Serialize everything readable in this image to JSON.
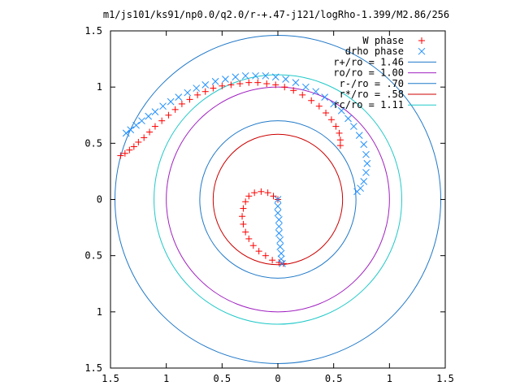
{
  "chart_data": {
    "type": "scatter",
    "title": "m1/js101/ks91/np0.0/q2.0/r-+.47-j121/logRho-1.399/M2.86/256",
    "xlabel": "",
    "ylabel": "",
    "xlim": [
      -1.5,
      1.5
    ],
    "ylim": [
      -1.5,
      1.5
    ],
    "x_ticks": [
      -1.5,
      -1,
      -0.5,
      0,
      0.5,
      1,
      1.5
    ],
    "y_ticks": [
      -1.5,
      -1,
      -0.5,
      0,
      0.5,
      1,
      1.5
    ],
    "x_tick_labels": [
      "1.5",
      "1",
      "0.5",
      "0",
      "0.5",
      "1",
      "1.5"
    ],
    "y_tick_labels": [
      "1.5",
      "1",
      "0.5",
      "0",
      "0.5",
      "1",
      "1.5"
    ],
    "grid": false,
    "legend_position": "top-right",
    "circles": [
      {
        "name": "r+/ro = 1.46",
        "radius": 1.46,
        "color": "#1f78c8"
      },
      {
        "name": "ro/ro = 1.00",
        "radius": 1.0,
        "color": "#a020c0"
      },
      {
        "name": "r-/ro = .70",
        "radius": 0.7,
        "color": "#1f78c8"
      },
      {
        "name": "r*/ro = .58",
        "radius": 0.58,
        "color": "#cc0000"
      },
      {
        "name": "rc/ro = 1.11",
        "radius": 1.11,
        "color": "#20c8c8"
      }
    ],
    "series": [
      {
        "name": "W phase",
        "marker": "plus",
        "color": "#ff0000",
        "points": [
          [
            -1.41,
            0.39
          ],
          [
            -1.37,
            0.41
          ],
          [
            -1.33,
            0.44
          ],
          [
            -1.29,
            0.47
          ],
          [
            -1.25,
            0.51
          ],
          [
            -1.2,
            0.55
          ],
          [
            -1.15,
            0.6
          ],
          [
            -1.1,
            0.65
          ],
          [
            -1.04,
            0.7
          ],
          [
            -0.98,
            0.75
          ],
          [
            -0.92,
            0.8
          ],
          [
            -0.86,
            0.85
          ],
          [
            -0.79,
            0.89
          ],
          [
            -0.72,
            0.93
          ],
          [
            -0.65,
            0.96
          ],
          [
            -0.58,
            0.99
          ],
          [
            -0.5,
            1.01
          ],
          [
            -0.42,
            1.02
          ],
          [
            -0.34,
            1.03
          ],
          [
            -0.26,
            1.04
          ],
          [
            -0.18,
            1.04
          ],
          [
            -0.1,
            1.03
          ],
          [
            -0.02,
            1.02
          ],
          [
            0.06,
            1.0
          ],
          [
            0.14,
            0.97
          ],
          [
            0.22,
            0.93
          ],
          [
            0.3,
            0.88
          ],
          [
            0.37,
            0.83
          ],
          [
            0.43,
            0.77
          ],
          [
            0.48,
            0.71
          ],
          [
            0.52,
            0.65
          ],
          [
            0.55,
            0.59
          ],
          [
            0.56,
            0.53
          ],
          [
            0.56,
            0.48
          ],
          [
            0.0,
            0.0
          ],
          [
            -0.04,
            0.03
          ],
          [
            -0.09,
            0.06
          ],
          [
            -0.15,
            0.07
          ],
          [
            -0.21,
            0.06
          ],
          [
            -0.26,
            0.03
          ],
          [
            -0.29,
            -0.02
          ],
          [
            -0.31,
            -0.08
          ],
          [
            -0.32,
            -0.15
          ],
          [
            -0.31,
            -0.22
          ],
          [
            -0.29,
            -0.29
          ],
          [
            -0.26,
            -0.35
          ],
          [
            -0.22,
            -0.41
          ],
          [
            -0.17,
            -0.46
          ],
          [
            -0.11,
            -0.5
          ],
          [
            -0.05,
            -0.54
          ],
          [
            0.01,
            -0.56
          ],
          [
            0.05,
            -0.57
          ]
        ]
      },
      {
        "name": "drho phase",
        "marker": "cross",
        "color": "#1f8fff",
        "points": [
          [
            -1.36,
            0.59
          ],
          [
            -1.32,
            0.62
          ],
          [
            -1.27,
            0.66
          ],
          [
            -1.22,
            0.7
          ],
          [
            -1.16,
            0.74
          ],
          [
            -1.1,
            0.78
          ],
          [
            -1.03,
            0.83
          ],
          [
            -0.96,
            0.87
          ],
          [
            -0.89,
            0.91
          ],
          [
            -0.81,
            0.95
          ],
          [
            -0.73,
            0.99
          ],
          [
            -0.65,
            1.02
          ],
          [
            -0.56,
            1.05
          ],
          [
            -0.47,
            1.07
          ],
          [
            -0.38,
            1.09
          ],
          [
            -0.29,
            1.1
          ],
          [
            -0.2,
            1.1
          ],
          [
            -0.11,
            1.1
          ],
          [
            -0.02,
            1.09
          ],
          [
            0.07,
            1.07
          ],
          [
            0.16,
            1.04
          ],
          [
            0.25,
            1.0
          ],
          [
            0.34,
            0.96
          ],
          [
            0.42,
            0.91
          ],
          [
            0.5,
            0.85
          ],
          [
            0.57,
            0.79
          ],
          [
            0.63,
            0.72
          ],
          [
            0.68,
            0.65
          ],
          [
            0.73,
            0.57
          ],
          [
            0.77,
            0.49
          ],
          [
            0.79,
            0.4
          ],
          [
            0.8,
            0.32
          ],
          [
            0.79,
            0.24
          ],
          [
            0.77,
            0.16
          ],
          [
            0.74,
            0.1
          ],
          [
            0.71,
            0.07
          ],
          [
            0.0,
            0.0
          ],
          [
            0.0,
            -0.06
          ],
          [
            0.0,
            -0.12
          ],
          [
            0.01,
            -0.18
          ],
          [
            0.01,
            -0.24
          ],
          [
            0.01,
            -0.3
          ],
          [
            0.02,
            -0.36
          ],
          [
            0.02,
            -0.42
          ],
          [
            0.03,
            -0.48
          ],
          [
            0.03,
            -0.53
          ],
          [
            0.04,
            -0.57
          ]
        ]
      }
    ]
  }
}
